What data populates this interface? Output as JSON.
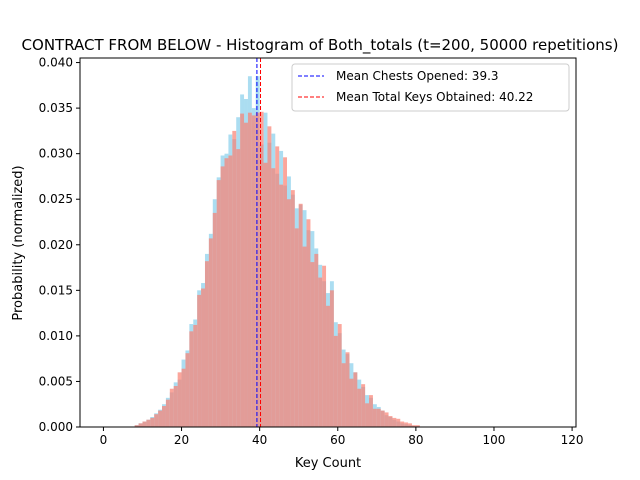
{
  "chart_data": {
    "type": "bar",
    "title": "CONTRACT FROM BELOW - Histogram of Both_totals (t=200, 50000 repetitions)",
    "xlabel": "Key Count",
    "ylabel": "Probability (normalized)",
    "xlim": [
      -6,
      121
    ],
    "ylim": [
      0,
      0.0405
    ],
    "xticks": [
      0,
      20,
      40,
      60,
      80,
      100,
      120
    ],
    "yticks": [
      0.0,
      0.005,
      0.01,
      0.015,
      0.02,
      0.025,
      0.03,
      0.035,
      0.04
    ],
    "ytick_labels": [
      "0.000",
      "0.005",
      "0.010",
      "0.015",
      "0.020",
      "0.025",
      "0.030",
      "0.035",
      "0.040"
    ],
    "bin_width": 1,
    "grid": false,
    "legend_position": "upper right",
    "series": [
      {
        "name": "",
        "color": "#87CEEB",
        "alpha": 0.7,
        "x": [
          8,
          9,
          10,
          11,
          12,
          13,
          14,
          15,
          16,
          17,
          18,
          19,
          20,
          21,
          22,
          23,
          24,
          25,
          26,
          27,
          28,
          29,
          30,
          31,
          32,
          33,
          34,
          35,
          36,
          37,
          38,
          39,
          40,
          41,
          42,
          43,
          44,
          45,
          46,
          47,
          48,
          49,
          50,
          51,
          52,
          53,
          54,
          55,
          56,
          57,
          58,
          59,
          60,
          61,
          62,
          63,
          64,
          65,
          66,
          67,
          68,
          69,
          70,
          71,
          72,
          73,
          74,
          75,
          76,
          77,
          78,
          79,
          80
        ],
        "values": [
          0.0002,
          0.0004,
          0.0006,
          0.0008,
          0.0011,
          0.0015,
          0.0019,
          0.0025,
          0.0032,
          0.0038,
          0.0049,
          0.0052,
          0.0074,
          0.0084,
          0.0113,
          0.0118,
          0.015,
          0.0158,
          0.019,
          0.0212,
          0.025,
          0.0274,
          0.0298,
          0.03,
          0.0321,
          0.0316,
          0.034,
          0.0365,
          0.036,
          0.0385,
          0.035,
          0.0385,
          0.031,
          0.0345,
          0.0312,
          0.0322,
          0.0278,
          0.0303,
          0.0265,
          0.0275,
          0.0255,
          0.024,
          0.0244,
          0.0238,
          0.0216,
          0.0215,
          0.0196,
          0.0178,
          0.016,
          0.0147,
          0.016,
          0.0115,
          0.0103,
          0.0085,
          0.008,
          0.007,
          0.006,
          0.0052,
          0.0044,
          0.0035,
          0.0032,
          0.0025,
          0.0022,
          0.0018,
          0.0013,
          0.0011,
          0.0008,
          0.0006,
          0.0004,
          0.0003,
          0.0002,
          0.0001,
          0.0001
        ]
      },
      {
        "name": "",
        "color": "#FA8072",
        "alpha": 0.7,
        "x": [
          8,
          9,
          10,
          11,
          12,
          13,
          14,
          15,
          16,
          17,
          18,
          19,
          20,
          21,
          22,
          23,
          24,
          25,
          26,
          27,
          28,
          29,
          30,
          31,
          32,
          33,
          34,
          35,
          36,
          37,
          38,
          39,
          40,
          41,
          42,
          43,
          44,
          45,
          46,
          47,
          48,
          49,
          50,
          51,
          52,
          53,
          54,
          55,
          56,
          57,
          58,
          59,
          60,
          61,
          62,
          63,
          64,
          65,
          66,
          67,
          68,
          69,
          70,
          71,
          72,
          73,
          74,
          75,
          76,
          77,
          78,
          79,
          80
        ],
        "values": [
          0.0002,
          0.0004,
          0.0006,
          0.0008,
          0.001,
          0.0014,
          0.0018,
          0.0023,
          0.003,
          0.0042,
          0.0045,
          0.006,
          0.0064,
          0.0081,
          0.0105,
          0.0112,
          0.0145,
          0.0152,
          0.0182,
          0.0207,
          0.0235,
          0.0271,
          0.0286,
          0.0295,
          0.0298,
          0.0325,
          0.0305,
          0.0344,
          0.0334,
          0.0345,
          0.0342,
          0.0345,
          0.0346,
          0.029,
          0.033,
          0.0284,
          0.0308,
          0.0266,
          0.0296,
          0.025,
          0.026,
          0.0218,
          0.0245,
          0.0198,
          0.0228,
          0.0181,
          0.019,
          0.0164,
          0.0177,
          0.0133,
          0.015,
          0.01,
          0.0113,
          0.007,
          0.0082,
          0.0053,
          0.006,
          0.0042,
          0.0047,
          0.0026,
          0.0035,
          0.002,
          0.002,
          0.0018,
          0.0016,
          0.0012,
          0.001,
          0.0009,
          0.0006,
          0.0005,
          0.0004,
          0.0002,
          0.0002
        ]
      }
    ],
    "vlines": [
      {
        "x": 39.3,
        "color": "#0000FF",
        "label": "Mean Chests Opened: 39.3"
      },
      {
        "x": 40.22,
        "color": "#FF0000",
        "label": "Mean Total Keys Obtained: 40.22"
      }
    ]
  }
}
